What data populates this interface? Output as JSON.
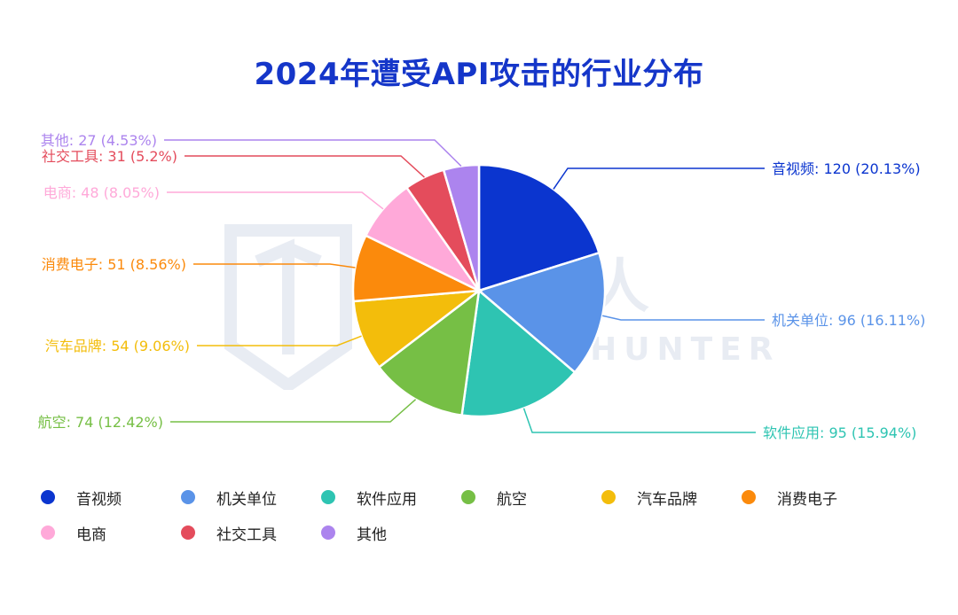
{
  "chart_data": {
    "type": "pie",
    "title": "2024年遭受API攻击的行业分布",
    "slices": [
      {
        "name": "音视频",
        "value": 120,
        "percent": "20.13%",
        "color": "#0b35cf"
      },
      {
        "name": "机关单位",
        "value": 96,
        "percent": "16.11%",
        "color": "#5a93e8"
      },
      {
        "name": "软件应用",
        "value": 95,
        "percent": "15.94%",
        "color": "#2ec4b2"
      },
      {
        "name": "航空",
        "value": 74,
        "percent": "12.42%",
        "color": "#76bf45"
      },
      {
        "name": "汽车品牌",
        "value": 54,
        "percent": "9.06%",
        "color": "#f3bd0b"
      },
      {
        "name": "消费电子",
        "value": 51,
        "percent": "8.56%",
        "color": "#fb8a0c"
      },
      {
        "name": "电商",
        "value": 48,
        "percent": "8.05%",
        "color": "#ffa9d9"
      },
      {
        "name": "社交工具",
        "value": 31,
        "percent": "5.2%",
        "color": "#e44c5c"
      },
      {
        "name": "其他",
        "value": 27,
        "percent": "4.53%",
        "color": "#ac84ee"
      }
    ],
    "legend_position": "bottom"
  },
  "watermark": {
    "text": "威胁猎人",
    "subtext": "THREAT HUNTER"
  }
}
